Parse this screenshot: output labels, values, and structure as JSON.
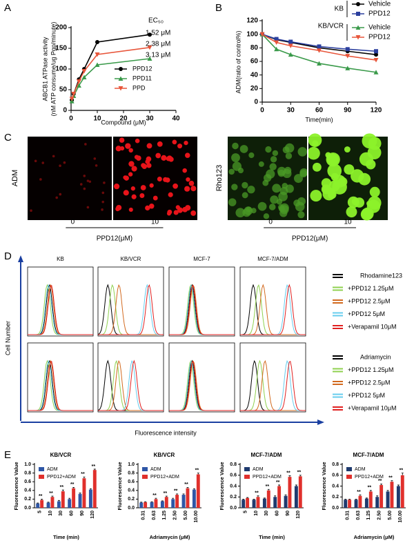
{
  "panel_labels": [
    "A",
    "B",
    "C",
    "D",
    "E"
  ],
  "chart_data": [
    {
      "type": "line",
      "y_label": [
        "ABCB1 ATPase activity",
        "(nM ATP consume/ug Pgp/minute)"
      ],
      "x_label": "Compound (μM)",
      "x": [
        0.3,
        1,
        3,
        5,
        10,
        30
      ],
      "xlim": [
        0,
        40
      ],
      "xticks": [
        0,
        10,
        20,
        30,
        40
      ],
      "ylim": [
        0,
        200
      ],
      "yticks": [
        0,
        50,
        100,
        150,
        200
      ],
      "series": [
        {
          "name": "PPD12",
          "color": "#000000",
          "marker": "circle",
          "values": [
            25,
            40,
            75,
            100,
            165,
            183
          ]
        },
        {
          "name": "PPD11",
          "color": "#3a9a4a",
          "marker": "triangle",
          "values": [
            22,
            35,
            60,
            80,
            110,
            125
          ]
        },
        {
          "name": "PPD",
          "color": "#e8553a",
          "marker": "triangle-down",
          "values": [
            28,
            40,
            70,
            95,
            135,
            152
          ]
        }
      ],
      "legend_corner": "lower right",
      "annotation_title": "EC₅₀",
      "annotations": [
        "1.52 μM",
        "2.38 μM",
        "3.13 μM"
      ]
    },
    {
      "type": "line",
      "y_label": [
        "ADM(ratio of control%)"
      ],
      "x_label": "Time(min)",
      "x": [
        0,
        15,
        30,
        60,
        90,
        120
      ],
      "xlim": [
        0,
        120
      ],
      "xticks": [
        0,
        30,
        60,
        90,
        120
      ],
      "ylim": [
        0,
        120
      ],
      "yticks": [
        0,
        20,
        40,
        60,
        80,
        100,
        120
      ],
      "series": [
        {
          "name": "Vehicle",
          "color": "#000000",
          "marker": "circle",
          "values": [
            100,
            92,
            88,
            80,
            75,
            70
          ]
        },
        {
          "name": "PPD12",
          "color": "#2b3f9e",
          "marker": "square",
          "values": [
            100,
            93,
            89,
            82,
            78,
            75
          ]
        },
        {
          "name": "Vehicle",
          "color": "#3a9a4a",
          "marker": "triangle",
          "values": [
            100,
            78,
            70,
            57,
            50,
            44
          ]
        },
        {
          "name": "PPD12",
          "color": "#e8553a",
          "marker": "triangle-down",
          "values": [
            100,
            88,
            83,
            76,
            68,
            62
          ]
        }
      ],
      "legend_corner": "upper right",
      "legend_groups": [
        "KB",
        "KB/VCR"
      ]
    },
    {
      "type": "bar",
      "title": "KB/VCR",
      "y_label": "Fluorescence Value",
      "x_label": "Time (min)",
      "categories": [
        "5",
        "10",
        "30",
        "60",
        "90",
        "120"
      ],
      "ylim": [
        0,
        1.0
      ],
      "yticks": [
        {
          "value": 0,
          "label": "0.0"
        },
        0.2,
        0.4,
        0.6,
        0.8,
        {
          "value": 1,
          "label": "1.0"
        }
      ],
      "series": [
        {
          "name": "ADM",
          "color": "#2e56a6",
          "values": [
            0.1,
            0.12,
            0.15,
            0.2,
            0.32,
            0.42
          ],
          "errors": [
            0.01,
            0.01,
            0.02,
            0.02,
            0.02,
            0.02
          ]
        },
        {
          "name": "PPD12+ADM",
          "color": "#e0302c",
          "values": [
            0.18,
            0.25,
            0.38,
            0.45,
            0.68,
            0.87
          ],
          "errors": [
            0.02,
            0.02,
            0.03,
            0.02,
            0.03,
            0.02
          ]
        }
      ],
      "significance": [
        "**",
        "**",
        "**",
        "**",
        "**",
        "**"
      ]
    },
    {
      "type": "bar",
      "title": "KB/VCR",
      "y_label": "Fluorescence Value",
      "x_label": "Adriamycin (μM)",
      "categories": [
        "0.31",
        "0.63",
        "1.25",
        "2.50",
        "5.00",
        "10.00"
      ],
      "ylim": [
        0,
        1.0
      ],
      "yticks": [
        {
          "value": 0,
          "label": "0.0"
        },
        0.2,
        0.4,
        0.6,
        0.8,
        {
          "value": 1,
          "label": "1.0"
        }
      ],
      "series": [
        {
          "name": "ADM",
          "color": "#2e56a6",
          "values": [
            0.12,
            0.13,
            0.15,
            0.2,
            0.3,
            0.42
          ],
          "errors": [
            0.01,
            0.01,
            0.01,
            0.02,
            0.02,
            0.02
          ]
        },
        {
          "name": "PPD12+ADM",
          "color": "#e0302c",
          "values": [
            0.13,
            0.2,
            0.25,
            0.3,
            0.45,
            0.77
          ],
          "errors": [
            0.01,
            0.02,
            0.02,
            0.02,
            0.02,
            0.03
          ]
        }
      ],
      "significance": [
        null,
        "**",
        "**",
        "**",
        "**",
        "**"
      ]
    },
    {
      "type": "bar",
      "title": "MCF-7/ADM",
      "y_label": "Fluorescence Value",
      "x_label": "Time (min)",
      "categories": [
        "5",
        "10",
        "30",
        "60",
        "90",
        "120"
      ],
      "ylim": [
        0,
        0.8
      ],
      "yticks": [
        {
          "value": 0,
          "label": "0.0"
        },
        0.2,
        0.4,
        0.6,
        0.8
      ],
      "series": [
        {
          "name": "ADM",
          "color": "#1f3a6e",
          "values": [
            0.15,
            0.15,
            0.17,
            0.2,
            0.22,
            0.4
          ],
          "errors": [
            0.01,
            0.01,
            0.01,
            0.02,
            0.02,
            0.02
          ]
        },
        {
          "name": "PPD12+ADM",
          "color": "#e0302c",
          "values": [
            0.18,
            0.2,
            0.32,
            0.4,
            0.57,
            0.58
          ],
          "errors": [
            0.01,
            0.02,
            0.02,
            0.02,
            0.02,
            0.02
          ]
        }
      ],
      "significance": [
        null,
        "**",
        "**",
        "**",
        "**",
        "**"
      ]
    },
    {
      "type": "bar",
      "title": "MCF-7/ADM",
      "y_label": "Fluorescence Value",
      "x_label": "Adriamycin (μM)",
      "categories": [
        "0.31",
        "0.63",
        "1.25",
        "2.50",
        "5.00",
        "10.00"
      ],
      "ylim": [
        0,
        0.8
      ],
      "yticks": [
        {
          "value": 0,
          "label": "0.0"
        },
        0.2,
        0.4,
        0.6,
        0.8
      ],
      "series": [
        {
          "name": "ADM",
          "color": "#1f3a6e",
          "values": [
            0.15,
            0.15,
            0.17,
            0.2,
            0.3,
            0.4
          ],
          "errors": [
            0.01,
            0.01,
            0.01,
            0.02,
            0.02,
            0.02
          ]
        },
        {
          "name": "PPD12+ADM",
          "color": "#e0302c",
          "values": [
            0.15,
            0.22,
            0.3,
            0.42,
            0.48,
            0.6
          ],
          "errors": [
            0.01,
            0.02,
            0.02,
            0.02,
            0.02,
            0.04
          ]
        }
      ],
      "significance": [
        null,
        "**",
        "**",
        "**",
        "**",
        "**"
      ]
    }
  ],
  "panel_c": [
    {
      "label": "ADM",
      "doses": [
        "0",
        "10"
      ],
      "x_label": "PPD12(μM)"
    },
    {
      "label": "Rho123",
      "doses": [
        "0",
        "10"
      ],
      "x_label": "PPD12(μM)"
    }
  ],
  "panel_d": {
    "columns": [
      "KB",
      "KB/VCR",
      "MCF-7",
      "MCF-7/ADM"
    ],
    "y_label": "Cell Number",
    "x_label": "Fluorescence intensity",
    "colors": [
      "#000000",
      "#8fd14f",
      "#d2691e",
      "#66ccee",
      "#e02020"
    ],
    "legends": [
      {
        "title": "Rhodamine123",
        "items": [
          "+PPD12 1.25μM",
          "+PPD12 2.5μM",
          "+PPD12 5μM",
          "+Verapamil 10μM"
        ]
      },
      {
        "title": "Adriamycin",
        "items": [
          "+PPD12 1.25μM",
          "+PPD12 2.5μM",
          "+PPD12 5μM",
          "+Verapamil 10μM"
        ]
      }
    ]
  }
}
